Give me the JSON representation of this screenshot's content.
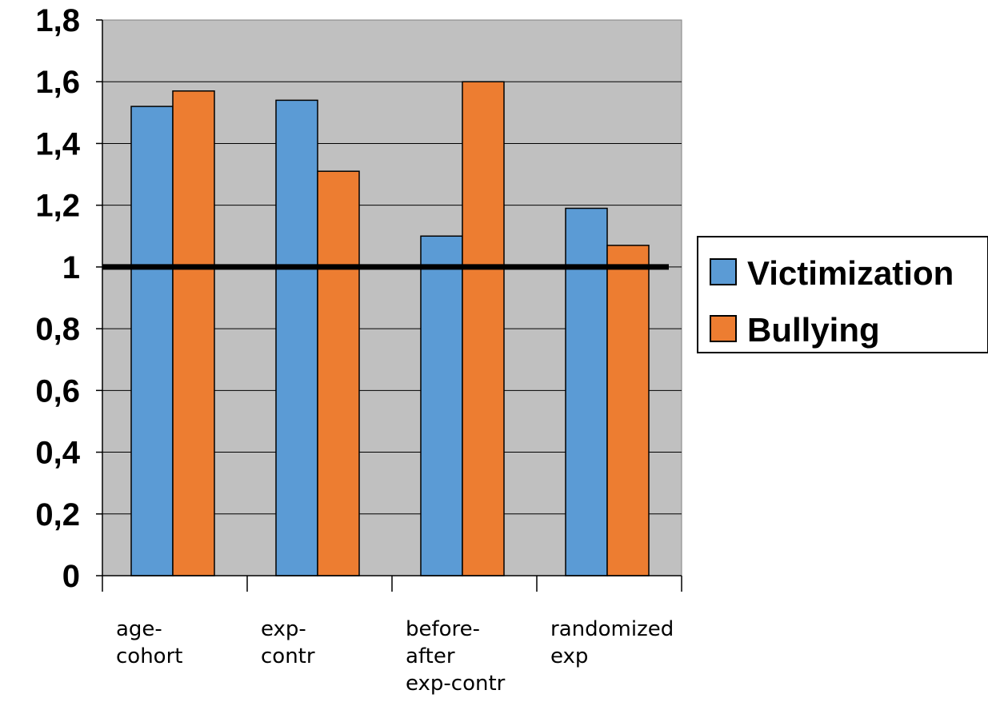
{
  "chart_data": {
    "type": "bar",
    "categories": [
      "age-cohort",
      "exp-contr",
      "before-after exp-contr",
      "randomized exp"
    ],
    "category_lines": [
      [
        "age-",
        "cohort"
      ],
      [
        "exp-",
        "contr"
      ],
      [
        "before-",
        "after",
        "exp-contr"
      ],
      [
        "randomized",
        "exp"
      ]
    ],
    "series": [
      {
        "name": "Victimization",
        "values": [
          1.52,
          1.54,
          1.1,
          1.19
        ],
        "color": "#5b9bd5"
      },
      {
        "name": "Bullying",
        "values": [
          1.57,
          1.31,
          1.6,
          1.07
        ],
        "color": "#ed7d31"
      }
    ],
    "ylim": [
      0,
      1.8
    ],
    "yticks": [
      0,
      0.2,
      0.4,
      0.6,
      0.8,
      1,
      1.2,
      1.4,
      1.6,
      1.8
    ],
    "ytick_labels": [
      "0",
      "0,2",
      "0,4",
      "0,6",
      "0,8",
      "1",
      "1,2",
      "1,4",
      "1,6",
      "1,8"
    ],
    "reference_line": 1,
    "grid": true,
    "plot_background": "#c0c0c0",
    "legend_position": "right",
    "title": "",
    "xlabel": "",
    "ylabel": ""
  }
}
